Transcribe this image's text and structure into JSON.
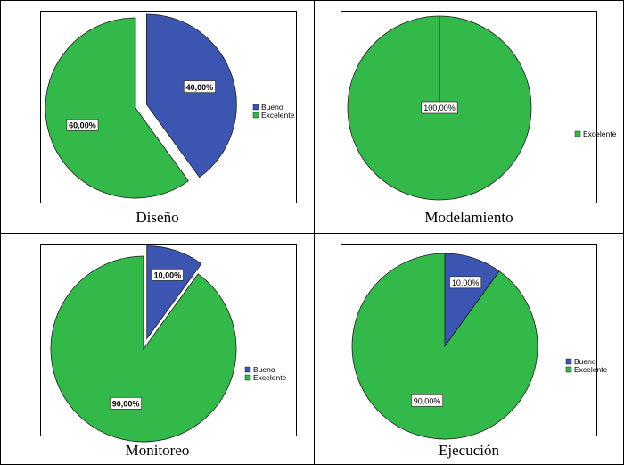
{
  "colors": {
    "bueno": "#3b55b0",
    "excelente": "#33b84a"
  },
  "chart_data": [
    {
      "type": "pie",
      "caption": "Diseño",
      "labels": [
        "Bueno",
        "Excelente"
      ],
      "values": [
        40,
        60
      ],
      "data_labels": [
        "40,00%",
        "60,00%"
      ],
      "legend": [
        "Bueno",
        "Excelente"
      ],
      "exploded": true,
      "bold_labels": true
    },
    {
      "type": "pie",
      "caption": "Modelamiento",
      "labels": [
        "Excelente"
      ],
      "values": [
        100
      ],
      "data_labels": [
        "100,00%"
      ],
      "legend": [
        "Excelente"
      ],
      "exploded": false,
      "bold_labels": false
    },
    {
      "type": "pie",
      "caption": "Monitoreo",
      "labels": [
        "Bueno",
        "Excelente"
      ],
      "values": [
        10,
        90
      ],
      "data_labels": [
        "10,00%",
        "90,00%"
      ],
      "legend": [
        "Bueno",
        "Excelente"
      ],
      "exploded": true,
      "bold_labels": true
    },
    {
      "type": "pie",
      "caption": "Ejecución",
      "labels": [
        "Bueno",
        "Excelente"
      ],
      "values": [
        10,
        90
      ],
      "data_labels": [
        "10,00%",
        "90,00%"
      ],
      "legend": [
        "Bueno",
        "Excelente"
      ],
      "exploded": false,
      "bold_labels": false
    }
  ]
}
